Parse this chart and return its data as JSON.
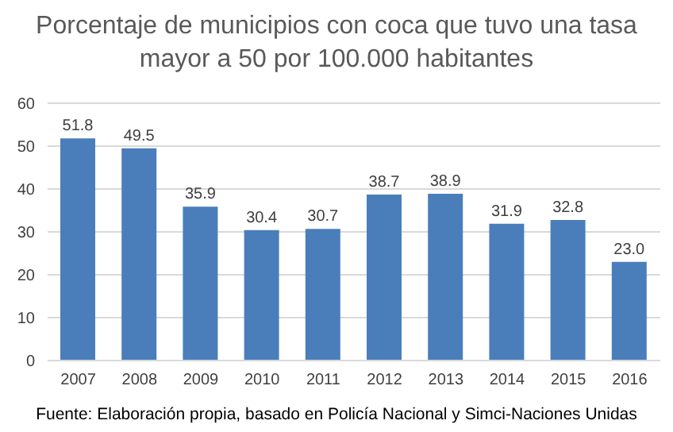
{
  "chart_data": {
    "type": "bar",
    "title": "Porcentaje de municipios con coca que tuvo una tasa mayor a 50 por 100.000 habitantes",
    "categories": [
      "2007",
      "2008",
      "2009",
      "2010",
      "2011",
      "2012",
      "2013",
      "2014",
      "2015",
      "2016"
    ],
    "values": [
      51.8,
      49.5,
      35.9,
      30.4,
      30.7,
      38.7,
      38.9,
      31.9,
      32.8,
      23.0
    ],
    "value_labels": [
      "51.8",
      "49.5",
      "35.9",
      "30.4",
      "30.7",
      "38.7",
      "38.9",
      "31.9",
      "32.8",
      "23.0"
    ],
    "color": "#4a7ebb",
    "ylim": [
      0,
      60
    ],
    "yticks": [
      0,
      10,
      20,
      30,
      40,
      50,
      60
    ],
    "grid": "y",
    "annotations": [
      "Fuente: Elaboración propia, basado en Policía Nacional y Simci-Naciones Unidas"
    ]
  }
}
